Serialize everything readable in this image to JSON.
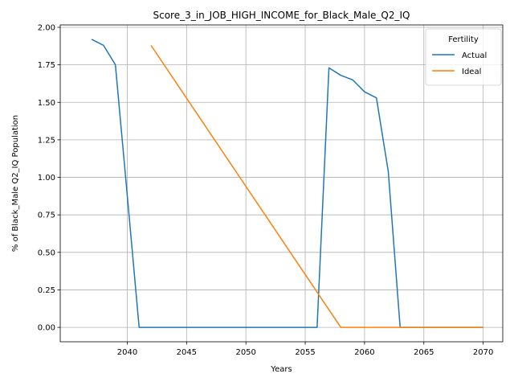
{
  "chart_data": {
    "type": "line",
    "title": "Score_3_in_JOB_HIGH_INCOME_for_Black_Male_Q2_IQ",
    "xlabel": "Years",
    "ylabel": "% of Black_Male Q2_IQ Population",
    "xlim": [
      2034.35,
      2071.65
    ],
    "ylim": [
      -0.096,
      2.016
    ],
    "xticks": [
      2040,
      2045,
      2050,
      2055,
      2060,
      2065,
      2070
    ],
    "yticks": [
      0.0,
      0.25,
      0.5,
      0.75,
      1.0,
      1.25,
      1.5,
      1.75,
      2.0
    ],
    "ytick_labels": [
      "0.00",
      "0.25",
      "0.50",
      "0.75",
      "1.00",
      "1.25",
      "1.50",
      "1.75",
      "2.00"
    ],
    "grid": true,
    "legend": {
      "title": "Fertility",
      "placement": "upper-right"
    },
    "series": [
      {
        "name": "Actual",
        "color": "#1f77b4",
        "x": [
          2037,
          2038,
          2039,
          2040,
          2041,
          2042,
          2043,
          2044,
          2045,
          2046,
          2047,
          2048,
          2049,
          2050,
          2051,
          2052,
          2053,
          2054,
          2055,
          2056,
          2057,
          2058,
          2059,
          2060,
          2061,
          2062,
          2063,
          2064,
          2065,
          2066,
          2067,
          2068,
          2069,
          2070
        ],
        "y": [
          1.92,
          1.88,
          1.75,
          0.88,
          0.0,
          0.0,
          0.0,
          0.0,
          0.0,
          0.0,
          0.0,
          0.0,
          0.0,
          0.0,
          0.0,
          0.0,
          0.0,
          0.0,
          0.0,
          0.0,
          1.73,
          1.68,
          1.65,
          1.57,
          1.53,
          1.04,
          0.0,
          0.0,
          0.0,
          0.0,
          0.0,
          0.0,
          0.0,
          0.0
        ]
      },
      {
        "name": "Ideal",
        "color": "#ff7f0e",
        "x": [
          2042,
          2058,
          2059,
          2060,
          2061,
          2062,
          2063,
          2064,
          2065,
          2066,
          2067,
          2068,
          2069,
          2070
        ],
        "y": [
          1.88,
          0.0,
          0.0,
          0.0,
          0.0,
          0.0,
          0.0,
          0.0,
          0.0,
          0.0,
          0.0,
          0.0,
          0.0,
          0.0
        ]
      }
    ]
  }
}
